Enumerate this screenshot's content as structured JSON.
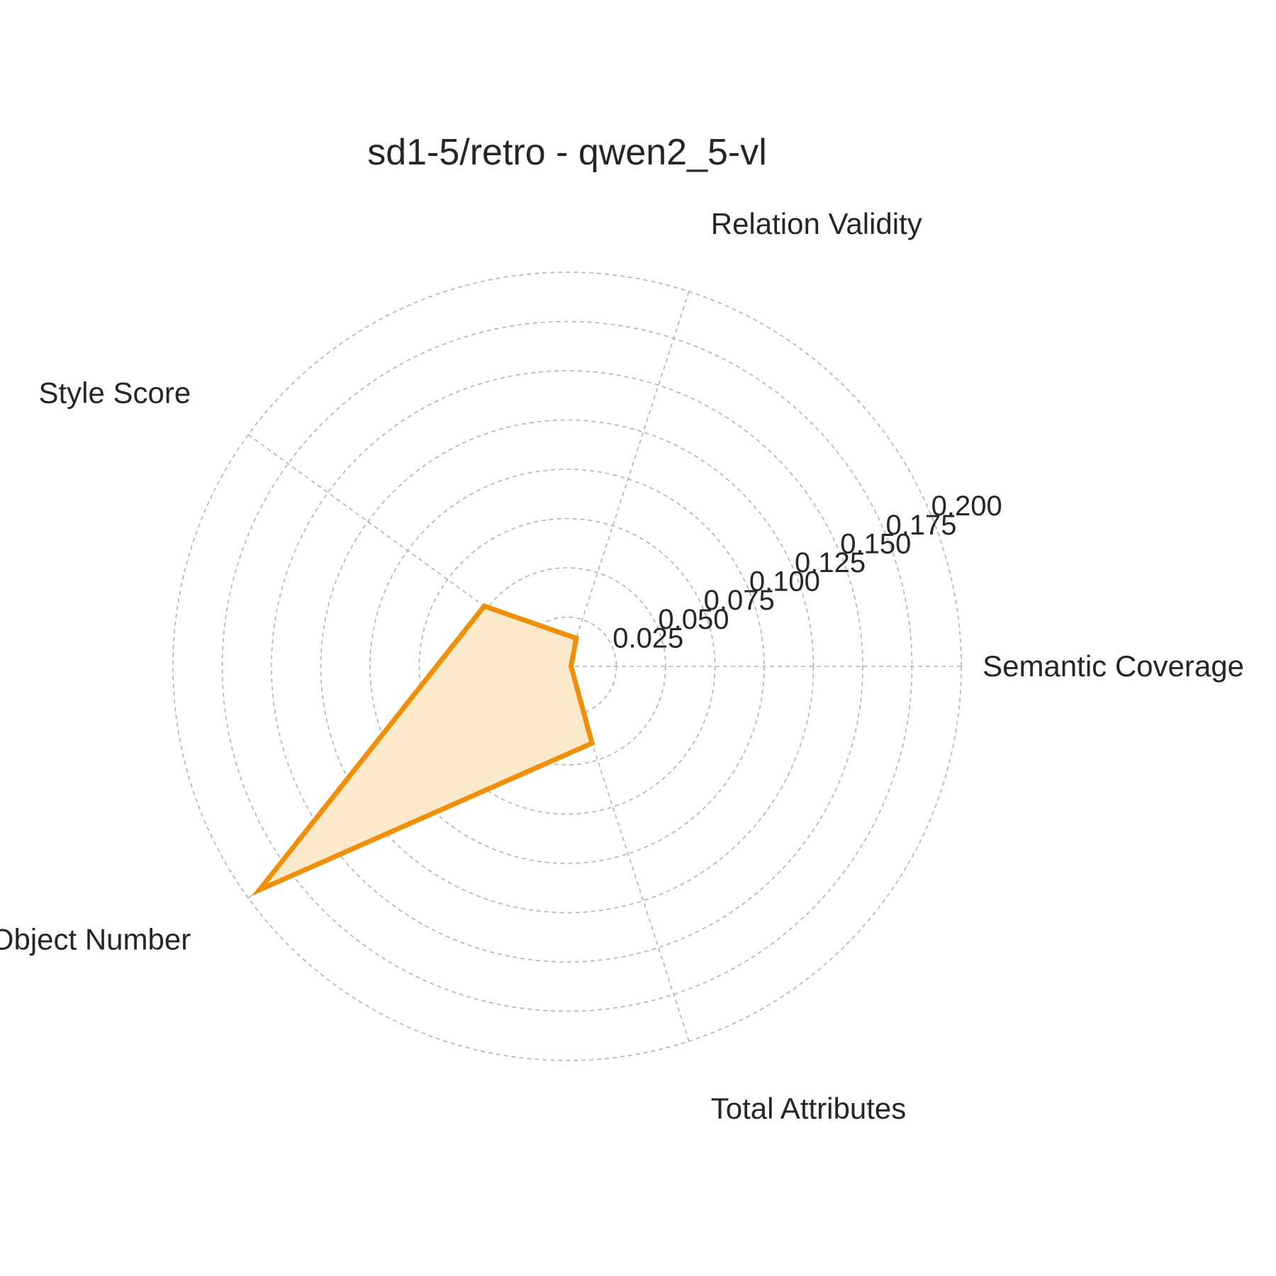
{
  "chart_data": {
    "type": "radar",
    "title": "sd1-5/retro - qwen2_5-vl",
    "axes": [
      "Semantic Coverage",
      "Relation Validity",
      "Style Score",
      "Object Number",
      "Total Attributes"
    ],
    "series": [
      {
        "values": [
          0.002,
          0.015,
          0.052,
          0.193,
          0.041
        ],
        "color": "#f0900a",
        "fill_color": "#fbe9cc"
      }
    ],
    "radial_ticks": [
      0.025,
      0.05,
      0.075,
      0.1,
      0.125,
      0.15,
      0.175,
      0.2
    ],
    "radial_tick_labels": [
      "0.025",
      "0.050",
      "0.075",
      "0.100",
      "0.125",
      "0.150",
      "0.175",
      "0.200"
    ],
    "rlim": [
      0,
      0.2
    ],
    "grid": true
  }
}
